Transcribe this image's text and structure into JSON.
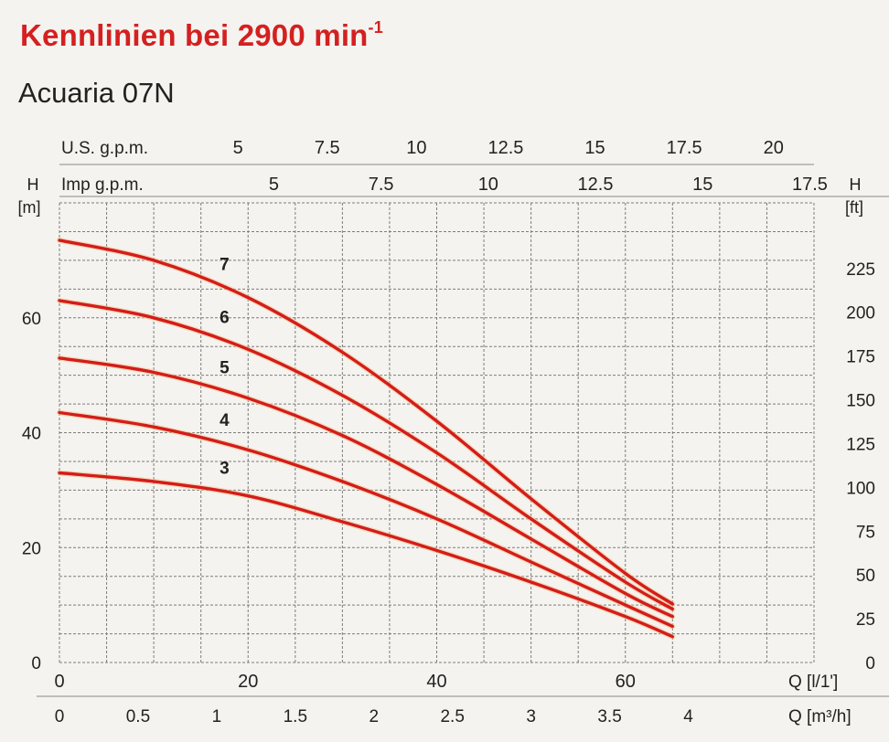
{
  "title": {
    "main": "Kennlinien bei 2900 min",
    "superscript": "-1"
  },
  "subtitle": "Acuaria 07N",
  "chart_data": {
    "type": "line",
    "colors": {
      "curve": "#d41c1c",
      "title": "#d42020"
    },
    "grid": true,
    "x_primary": {
      "label": "Q [l/1']",
      "range": [
        0,
        80
      ],
      "ticks": [
        "0",
        "20",
        "40",
        "60"
      ]
    },
    "x_m3h": {
      "label": "Q [m³/h]",
      "ticks": [
        "0",
        "0.5",
        "1",
        "1.5",
        "2",
        "2.5",
        "3",
        "3.5",
        "4"
      ]
    },
    "x_usgpm": {
      "label": "U.S. g.p.m.",
      "ticks": [
        "5",
        "7.5",
        "10",
        "12.5",
        "15",
        "17.5",
        "20"
      ]
    },
    "x_impgpm": {
      "label": "Imp g.p.m.",
      "ticks": [
        "5",
        "7.5",
        "10",
        "12.5",
        "15",
        "17.5"
      ]
    },
    "y_left": {
      "label": "H",
      "unit": "[m]",
      "range": [
        0,
        80
      ],
      "ticks": [
        "0",
        "20",
        "40",
        "60"
      ]
    },
    "y_right": {
      "label": "H",
      "unit": "[ft]",
      "ticks": [
        "0",
        "25",
        "50",
        "75",
        "100",
        "125",
        "150",
        "175",
        "200",
        "225"
      ]
    },
    "series": [
      {
        "name": "3",
        "x": [
          0,
          10,
          20,
          30,
          40,
          50,
          60,
          65
        ],
        "y": [
          33,
          31.5,
          29,
          24.5,
          19.5,
          14,
          8,
          4.5
        ]
      },
      {
        "name": "4",
        "x": [
          0,
          10,
          20,
          30,
          40,
          50,
          60,
          65
        ],
        "y": [
          43.5,
          41,
          37,
          31.5,
          25,
          17.5,
          10,
          6.3
        ]
      },
      {
        "name": "5",
        "x": [
          0,
          10,
          20,
          30,
          40,
          50,
          60,
          65
        ],
        "y": [
          53,
          50.5,
          46,
          39.5,
          31,
          21.5,
          12,
          8
        ]
      },
      {
        "name": "6",
        "x": [
          0,
          10,
          20,
          30,
          40,
          50,
          60,
          65
        ],
        "y": [
          63,
          60,
          54.5,
          46.5,
          36.5,
          25,
          14,
          9.3
        ]
      },
      {
        "name": "7",
        "x": [
          0,
          10,
          20,
          30,
          40,
          50,
          60,
          65
        ],
        "y": [
          73.5,
          70,
          63.5,
          54,
          42,
          28.5,
          15.5,
          10.2
        ]
      }
    ]
  }
}
